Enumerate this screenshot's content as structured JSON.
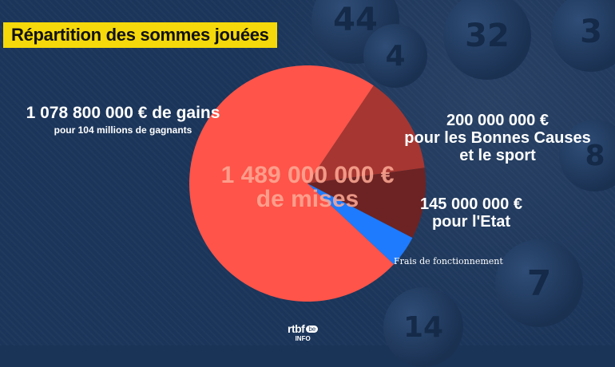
{
  "title": "Répartition des sommes jouées",
  "chart_data": {
    "type": "pie",
    "slices": [
      {
        "name": "1 078 800 000 € de gains",
        "sub": "pour 104 millions de gagnants",
        "value": 1078800000,
        "color": "#fe5449"
      },
      {
        "name": "200 000 000 €",
        "sub": "pour les Bonnes Causes et le sport",
        "value": 200000000,
        "color": "#a63631"
      },
      {
        "name": "145 000 000 €",
        "sub": "pour l'Etat",
        "value": 145000000,
        "color": "#6d2323"
      },
      {
        "name": "Frais de fonctionnement",
        "sub": "",
        "value": 65200000,
        "color": "#1e7bfe"
      }
    ],
    "center_label_line1": "1 489 000 000 €",
    "center_label_line2": "de mises"
  },
  "labels": {
    "gains_main": "1 078 800 000 € de gains",
    "gains_sub": "pour 104 millions de gagnants",
    "causes_l1": "200 000 000 €",
    "causes_l2": "pour les Bonnes Causes",
    "causes_l3": "et le sport",
    "etat_l1": "145 000 000 €",
    "etat_l2": "pour l'Etat",
    "frais": "Frais de fonctionnement"
  },
  "logo": {
    "brand": "rtbf",
    "suffix": "be",
    "sub": "INFO"
  },
  "balls": [
    "44",
    "4",
    "32",
    "3",
    "7",
    "8",
    "14"
  ]
}
